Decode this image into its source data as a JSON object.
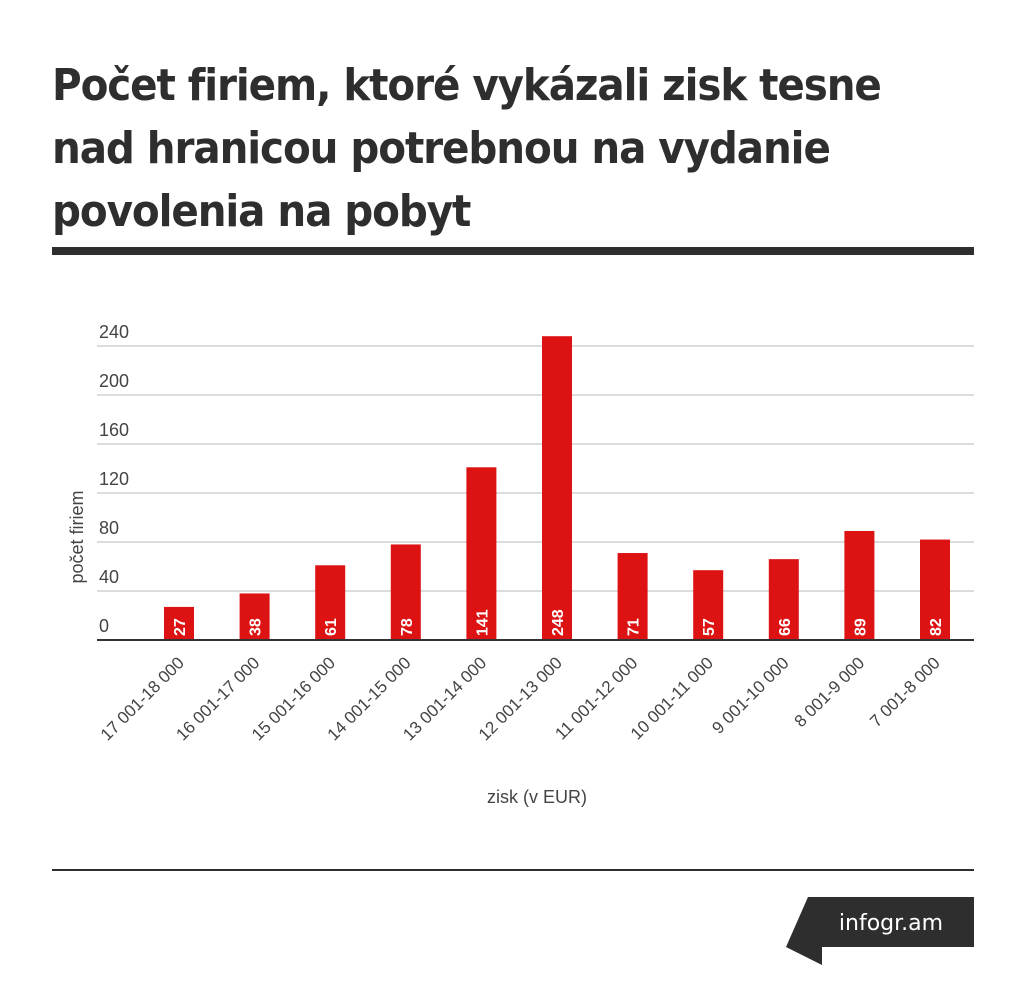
{
  "title": "Počet firiem, ktoré vykázali zisk tesne nad hranicou potrebnou na vydanie povolenia na pobyt",
  "brand": "infogr.am",
  "colors": {
    "bar": "#dd1313",
    "text": "#2e2e2e",
    "grid": "#b9b9b9",
    "axis": "#333333"
  },
  "chart_data": {
    "type": "bar",
    "title": "Počet firiem, ktoré vykázali zisk tesne nad hranicou potrebnou na vydanie povolenia na pobyt",
    "xlabel": "zisk (v EUR)",
    "ylabel": "počet firiem",
    "categories": [
      "17 001-18 000",
      "16 001-17 000",
      "15 001-16 000",
      "14 001-15 000",
      "13 001-14 000",
      "12 001-13 000",
      "11 001-12 000",
      "10 001-11 000",
      "9 001-10 000",
      "8 001-9 000",
      "7 001-8 000"
    ],
    "values": [
      27,
      38,
      61,
      78,
      141,
      248,
      71,
      57,
      66,
      89,
      82
    ],
    "ylim": [
      0,
      240
    ],
    "yticks": [
      0,
      40,
      80,
      120,
      160,
      200,
      240
    ],
    "grid": true,
    "legend": "none",
    "data_labels": true
  }
}
